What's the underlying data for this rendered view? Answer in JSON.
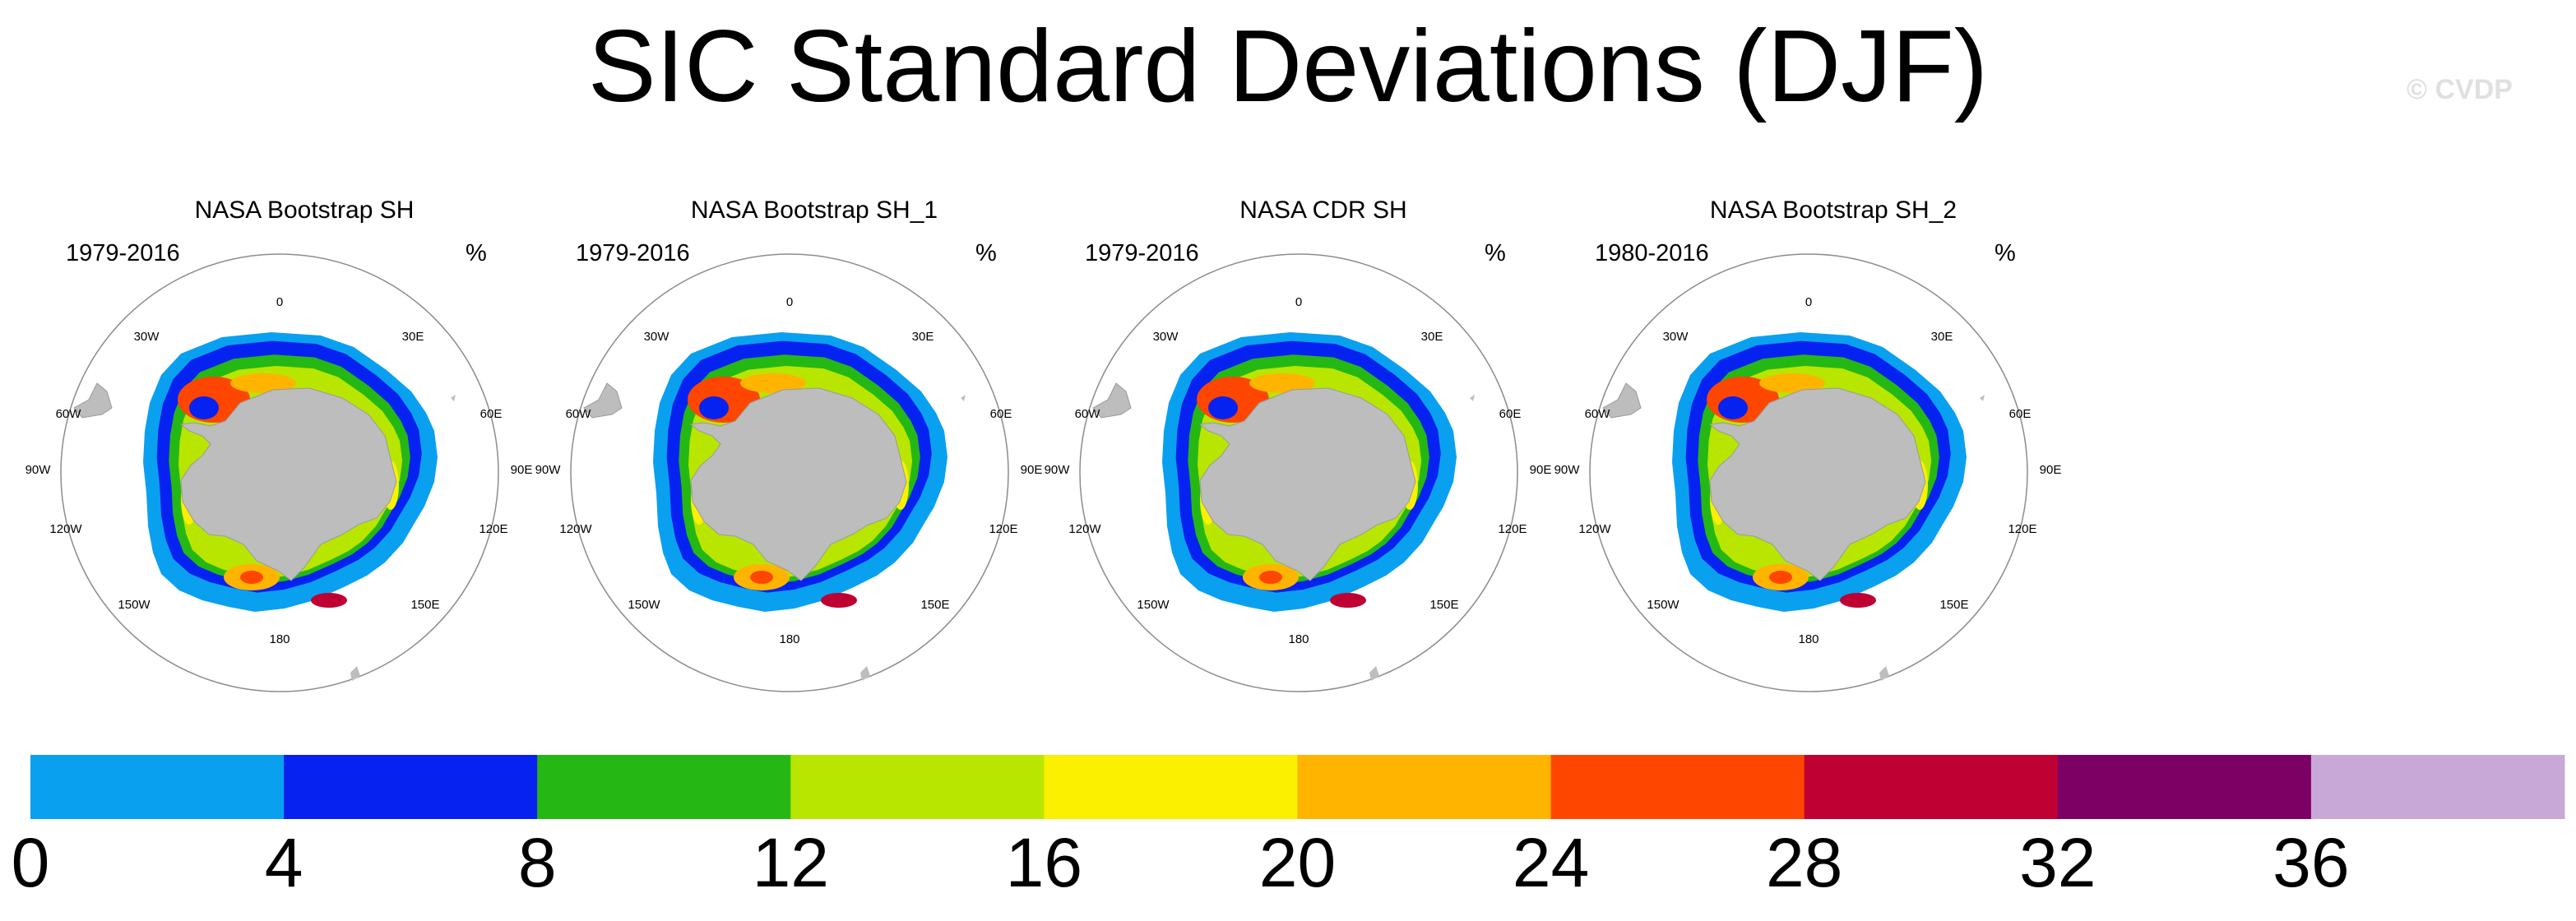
{
  "title": "SIC Standard Deviations (DJF)",
  "watermark": "© CVDP",
  "panels": [
    {
      "title": "NASA Bootstrap SH",
      "years": "1979-2016",
      "units": "%"
    },
    {
      "title": "NASA Bootstrap SH_1",
      "years": "1979-2016",
      "units": "%"
    },
    {
      "title": "NASA CDR SH",
      "years": "1979-2016",
      "units": "%"
    },
    {
      "title": "NASA Bootstrap SH_2",
      "years": "1980-2016",
      "units": "%"
    }
  ],
  "longitude_labels": [
    "0",
    "30E",
    "60E",
    "90E",
    "120E",
    "150E",
    "180",
    "150W",
    "120W",
    "90W",
    "60W",
    "30W"
  ],
  "colorbar": {
    "levels": [
      "0",
      "4",
      "8",
      "12",
      "16",
      "20",
      "24",
      "28",
      "32",
      "36"
    ],
    "colors": [
      "#0aa0f0",
      "#0522f0",
      "#25b814",
      "#b8e600",
      "#faf000",
      "#ffb400",
      "#ff4600",
      "#be0032",
      "#7d0064",
      "#c8a8d6"
    ]
  },
  "map_colors": {
    "land": "#bdbdbd",
    "outline": "#8c8c8c",
    "ice_blue_light": "#0aa0f0",
    "ice_blue_dark": "#0522f0",
    "ice_green": "#25b814",
    "ice_yellowgreen": "#b8e600",
    "ice_yellow": "#faf000",
    "ice_orange": "#ffb400",
    "ice_red": "#ff4600",
    "ice_crimson": "#be0032"
  }
}
